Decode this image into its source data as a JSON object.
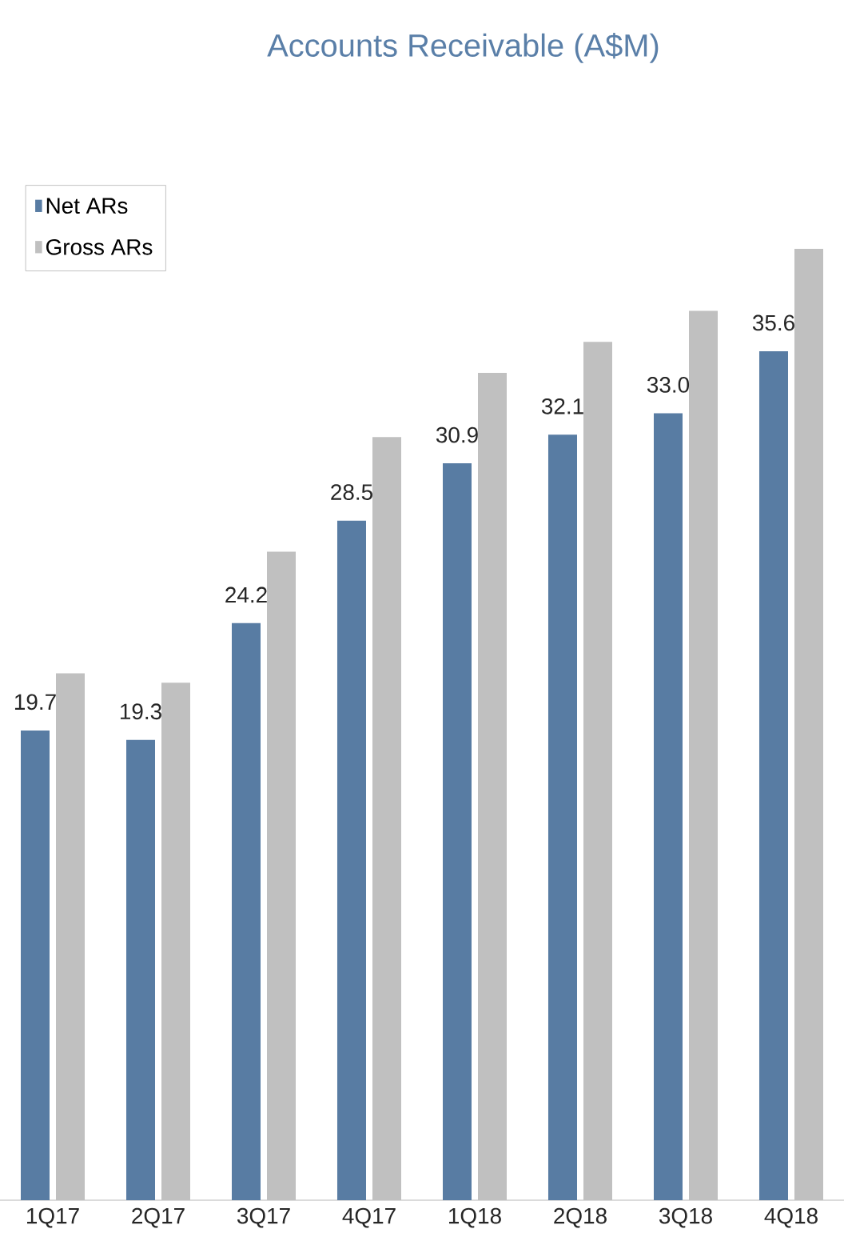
{
  "chart_data": {
    "type": "bar",
    "title": "Accounts Receivable (A$M)",
    "categories": [
      "1Q17",
      "2Q17",
      "3Q17",
      "4Q17",
      "1Q18",
      "2Q18",
      "3Q18",
      "4Q18"
    ],
    "series": [
      {
        "name": "Net ARs",
        "color": "#587ca3",
        "values": [
          19.7,
          19.3,
          24.2,
          28.5,
          30.9,
          32.1,
          33.0,
          35.6
        ],
        "value_labels": [
          "19.7",
          "19.3",
          "24.2",
          "28.5",
          "30.9",
          "32.1",
          "33.0",
          "35.6"
        ]
      },
      {
        "name": "Gross ARs",
        "color": "#c0c0c0",
        "values": [
          22.1,
          21.7,
          27.2,
          32.0,
          34.7,
          36.0,
          37.3,
          39.9
        ]
      }
    ],
    "tick_labels": "x",
    "legend": "top left"
  }
}
